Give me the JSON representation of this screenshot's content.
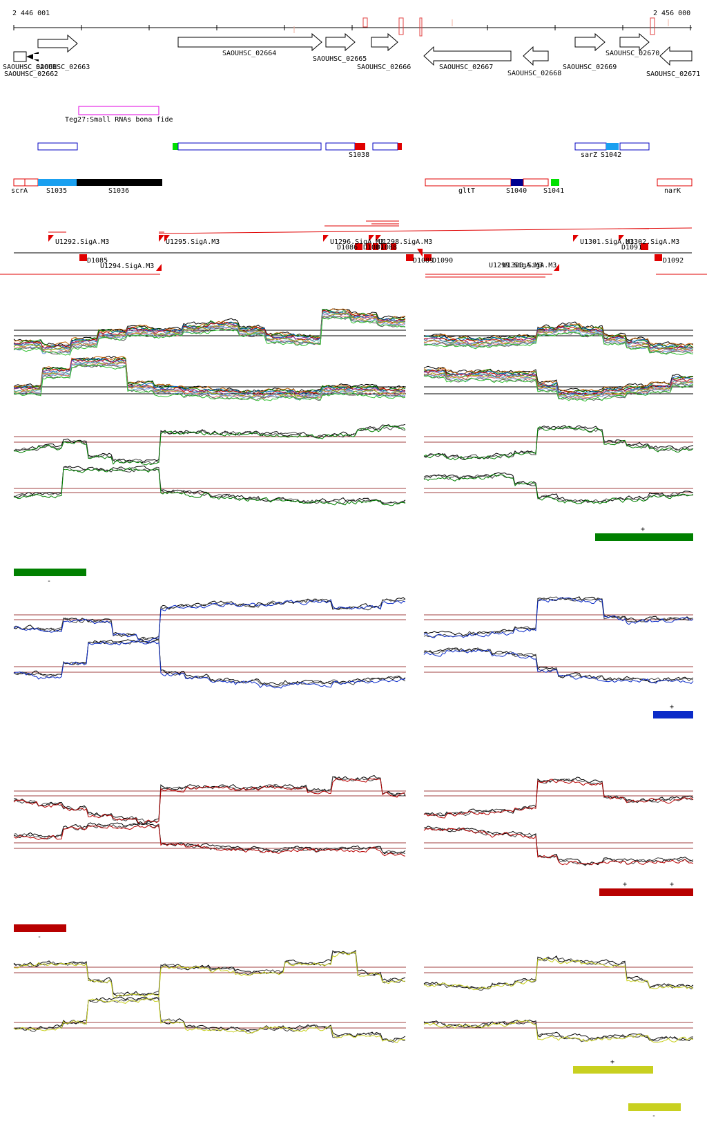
{
  "coords": {
    "start": "2 446 001",
    "end": "2 456 000"
  },
  "genes": [
    {
      "label": "SAOUHSC_02661",
      "dir": "+"
    },
    {
      "label": "SAOUHSC_02662",
      "dir": "-"
    },
    {
      "label": "SAOUHSC_02663",
      "dir": "+"
    },
    {
      "label": "SAOUHSC_02664",
      "dir": "+"
    },
    {
      "label": "SAOUHSC_02665",
      "dir": "+"
    },
    {
      "label": "SAOUHSC_02666",
      "dir": "+"
    },
    {
      "label": "SAOUHSC_02667",
      "dir": "-"
    },
    {
      "label": "SAOUHSC_02668",
      "dir": "-"
    },
    {
      "label": "SAOUHSC_02669",
      "dir": "+"
    },
    {
      "label": "SAOUHSC_02670",
      "dir": "+"
    },
    {
      "label": "SAOUHSC_02671",
      "dir": "-"
    }
  ],
  "srna_feature": "Teg27:Small RNAs bona fide",
  "segments_plus": [
    "S1038",
    "sarZ",
    "S1042"
  ],
  "segments_minus": [
    "scrA",
    "S1035",
    "S1036",
    "gltT",
    "S1040",
    "S1041",
    "narK"
  ],
  "promoters_plus": [
    "U1292.SigA.M3",
    "U1295.SigA.M3",
    "U1296.SigA.M3",
    "U1298.SigA.M3",
    "U1301.SigA.M3",
    "U1302.SigA.M3"
  ],
  "terminators_plus": [
    "D1085",
    "D1086",
    "D1087",
    "D1088",
    "D1089",
    "D1090",
    "D1091",
    "D1092"
  ],
  "promoters_minus": [
    "U1294.SigA.M3",
    "U1299.SigA.M3",
    "U1300.SigA.M3"
  ],
  "strand_markers": {
    "green": {
      "plus": "+",
      "minus": "-"
    },
    "blue": {
      "plus": "+"
    },
    "red": {
      "plus1": "+",
      "plus2": "+",
      "minus": "-"
    },
    "yellow": {
      "plus": "+",
      "minus": "-"
    }
  },
  "colors": {
    "green": "#008000",
    "blue": "#0b2bc8",
    "red": "#b80000",
    "yellow": "#c8d020",
    "feature_red": "#e00000",
    "feature_blue": "#0000c0",
    "segment_lightblue": "#1aa0f0",
    "segment_navy": "#000090",
    "segment_green": "#00e000",
    "srna_magenta": "#e000e0",
    "threshold": "#a04040"
  }
}
